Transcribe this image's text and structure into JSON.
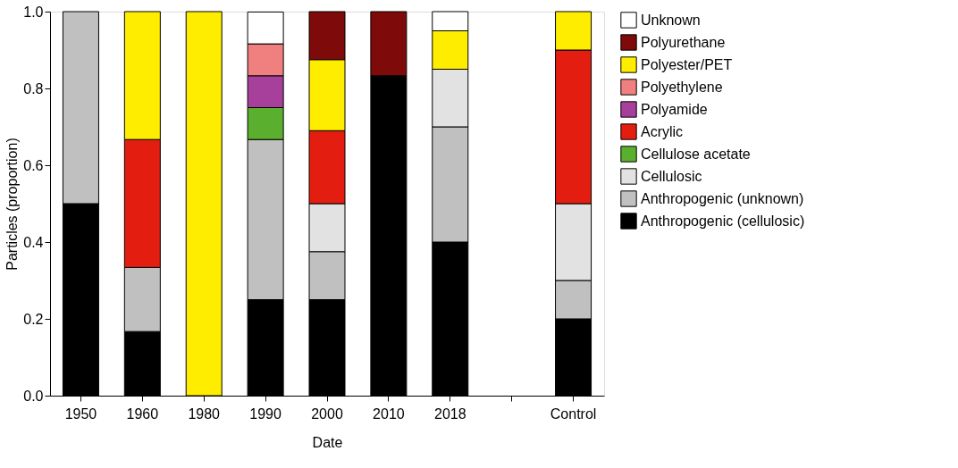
{
  "chart_data": {
    "type": "bar",
    "stacked": true,
    "xlabel": "Date",
    "ylabel": "Particles (proportion)",
    "categories": [
      "1950",
      "1960",
      "1980",
      "1990",
      "2000",
      "2010",
      "2018",
      null,
      "Control"
    ],
    "ylim": [
      0,
      1
    ],
    "yticks": [
      {
        "value": 0,
        "label": "0.0"
      },
      {
        "value": 0.2,
        "label": "0.2"
      },
      {
        "value": 0.4,
        "label": "0.4"
      },
      {
        "value": 0.6,
        "label": "0.6"
      },
      {
        "value": 0.8,
        "label": "0.8"
      },
      {
        "value": 1,
        "label": "1.0"
      }
    ],
    "grid": false,
    "legend": "right",
    "series": [
      {
        "name": "Anthropogenic (cellulosic)",
        "color": "#000000",
        "values": [
          0.5,
          0.167,
          null,
          0.25,
          0.25,
          0.833,
          0.4,
          null,
          0.2
        ]
      },
      {
        "name": "Anthropogenic (unknown)",
        "color": "#c0c0c0",
        "values": [
          0.5,
          0.167,
          null,
          0.417,
          0.125,
          null,
          0.3,
          null,
          0.1
        ]
      },
      {
        "name": "Cellulosic",
        "color": "#e2e2e2",
        "values": [
          null,
          null,
          null,
          null,
          0.125,
          null,
          0.15,
          null,
          0.2
        ]
      },
      {
        "name": "Cellulose acetate",
        "color": "#5aaf2e",
        "values": [
          null,
          null,
          null,
          0.083,
          null,
          null,
          null,
          null,
          null
        ]
      },
      {
        "name": "Acrylic",
        "color": "#e31e10",
        "values": [
          null,
          0.333,
          null,
          null,
          0.19,
          null,
          null,
          null,
          0.4
        ]
      },
      {
        "name": "Polyamide",
        "color": "#a7409a",
        "values": [
          null,
          null,
          null,
          0.083,
          null,
          null,
          null,
          null,
          null
        ]
      },
      {
        "name": "Polyethylene",
        "color": "#f08080",
        "values": [
          null,
          null,
          null,
          0.083,
          null,
          null,
          null,
          null,
          null
        ]
      },
      {
        "name": "Polyester/PET",
        "color": "#ffed00",
        "values": [
          null,
          0.333,
          1.0,
          null,
          0.185,
          null,
          0.1,
          null,
          0.1
        ]
      },
      {
        "name": "Polyurethane",
        "color": "#7f0a0a",
        "values": [
          null,
          null,
          null,
          null,
          0.125,
          0.167,
          null,
          null,
          null
        ]
      },
      {
        "name": "Unknown",
        "color": "#ffffff",
        "values": [
          null,
          null,
          null,
          0.083,
          null,
          null,
          0.05,
          null,
          null
        ]
      }
    ]
  }
}
